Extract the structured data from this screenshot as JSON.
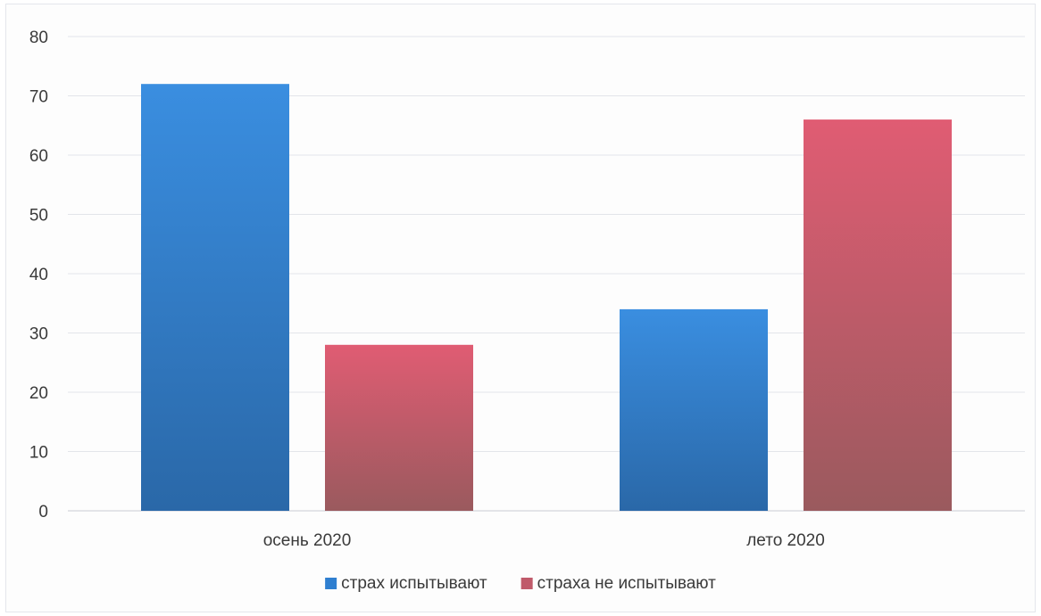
{
  "chart_data": {
    "type": "bar",
    "title": "",
    "xlabel": "",
    "ylabel": "",
    "categories": [
      "осень 2020",
      "лето 2020"
    ],
    "series": [
      {
        "name": "страх испытывают",
        "values": [
          72,
          34
        ],
        "color": "#2f7fd0"
      },
      {
        "name": "страха не испытывают",
        "values": [
          28,
          66
        ],
        "color": "#c05a6a"
      }
    ],
    "ylim": [
      0,
      80
    ],
    "yticks": [
      0,
      10,
      20,
      30,
      40,
      50,
      60,
      70,
      80
    ],
    "grid": true,
    "legend_position": "bottom"
  }
}
